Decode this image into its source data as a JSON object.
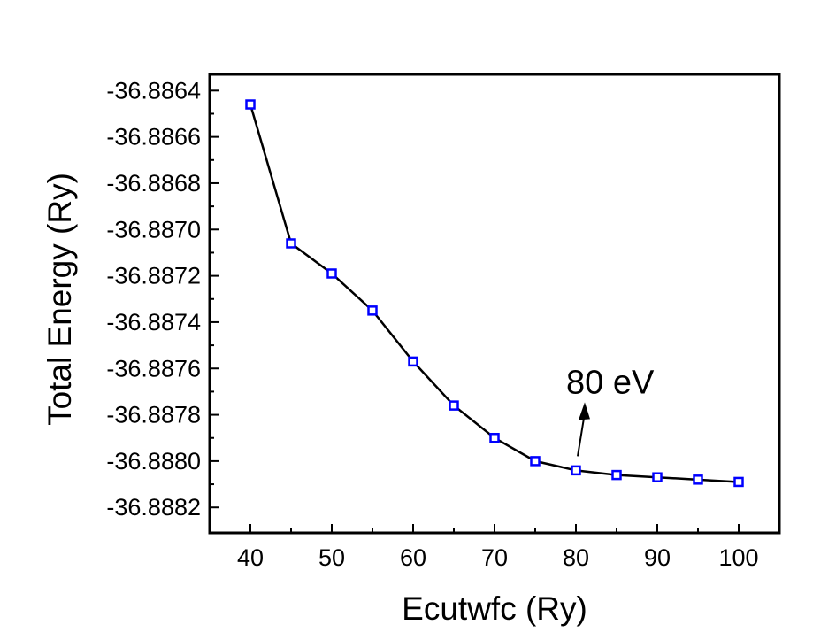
{
  "chart_data": {
    "type": "line",
    "xlabel": "Ecutwfc (Ry)",
    "ylabel": "Total Energy (Ry)",
    "xlim": [
      35,
      105
    ],
    "ylim": [
      -36.88831,
      -36.88633
    ],
    "xticks": [
      40,
      50,
      60,
      70,
      80,
      90,
      100
    ],
    "xtick_labels": [
      "40",
      "50",
      "60",
      "70",
      "80",
      "90",
      "100"
    ],
    "yticks": [
      -36.8864,
      -36.8866,
      -36.8868,
      -36.887,
      -36.8872,
      -36.8874,
      -36.8876,
      -36.8878,
      -36.888,
      -36.8882
    ],
    "ytick_labels": [
      "-36.8864",
      "-36.8866",
      "-36.8868",
      "-36.8870",
      "-36.8872",
      "-36.8874",
      "-36.8876",
      "-36.8878",
      "-36.8880",
      "-36.8882"
    ],
    "grid": false,
    "series": [
      {
        "x": [
          40,
          45,
          50,
          55,
          60,
          65,
          70,
          75,
          80,
          85,
          90,
          95,
          100
        ],
        "y": [
          -36.88646,
          -36.88706,
          -36.88719,
          -36.88735,
          -36.88757,
          -36.88776,
          -36.8879,
          -36.888,
          -36.88804,
          -36.88806,
          -36.88807,
          -36.88808,
          -36.88809
        ],
        "line_color": "#000000",
        "marker": "square-open",
        "marker_color": "#0000ff"
      }
    ],
    "annotations": [
      {
        "text": "80 eV",
        "points_to_x": 80,
        "points_to_y": -36.88804
      }
    ]
  }
}
